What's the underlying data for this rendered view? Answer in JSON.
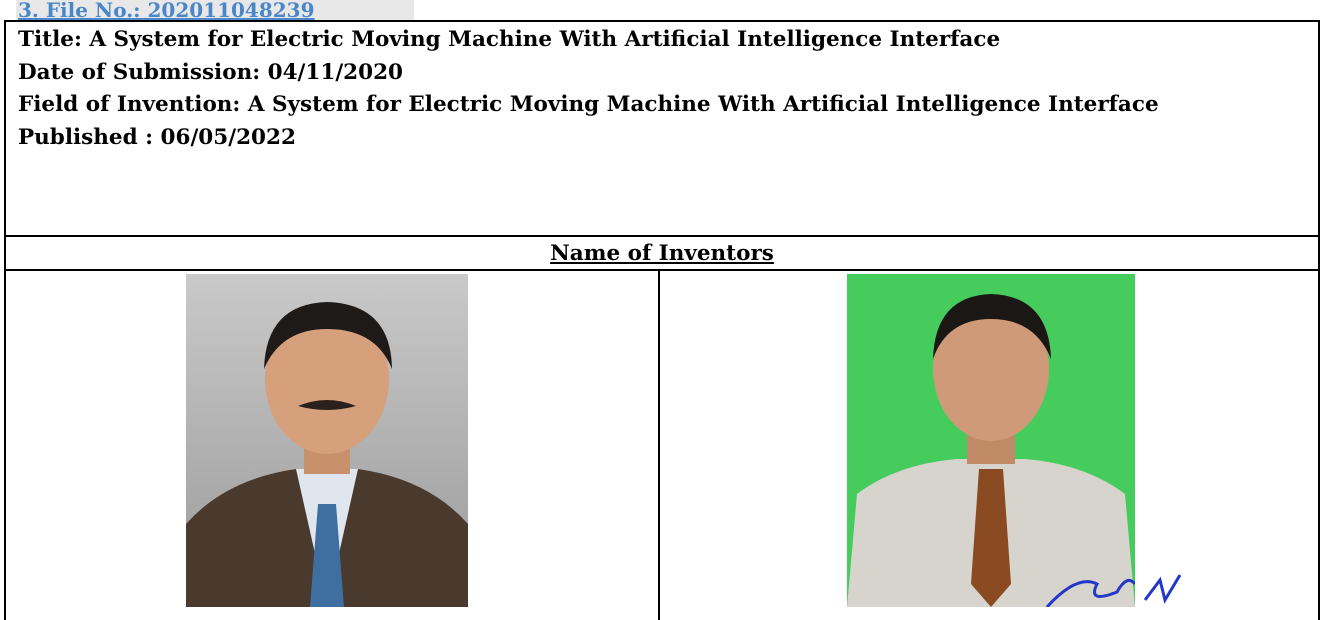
{
  "header": {
    "file_no": "3. File No.: 202011048239"
  },
  "details": {
    "title": "Title: A System for Electric Moving Machine With Artificial Intelligence Interface",
    "date_of_submission": "Date of Submission: 04/11/2020",
    "field_of_invention": "Field of Invention: A System for Electric Moving Machine With Artificial Intelligence Interface",
    "published": "Published : 06/05/2022"
  },
  "inventors": {
    "heading": "Name of Inventors"
  }
}
